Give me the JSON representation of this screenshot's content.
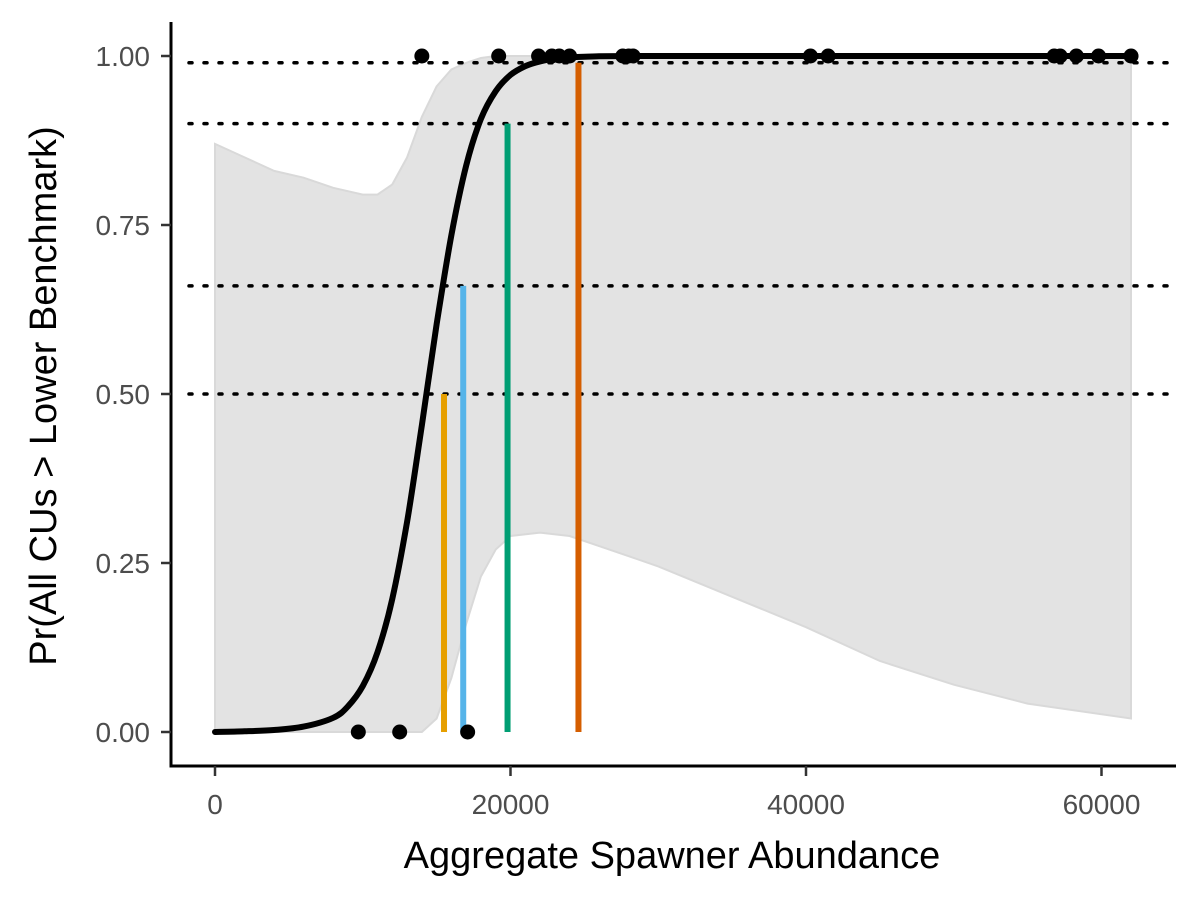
{
  "chart_data": {
    "type": "line",
    "title": "",
    "xlabel": "Aggregate Spawner Abundance",
    "ylabel": "Pr(All CUs > Lower Benchmark)",
    "xlim": [
      -2000,
      65000
    ],
    "ylim": [
      -0.1,
      1.05
    ],
    "x_ticks": [
      0,
      20000,
      40000,
      60000
    ],
    "x_tick_labels": [
      "0",
      "20000",
      "40000",
      "60000"
    ],
    "y_ticks": [
      0,
      0.25,
      0.5,
      0.75,
      1.0
    ],
    "y_tick_labels": [
      "0.00",
      "0.25",
      "0.50",
      "0.75",
      "1.00"
    ],
    "grid": false,
    "legend": "none",
    "fitted_curve": {
      "x": [
        0,
        2000,
        4000,
        6000,
        8000,
        9000,
        10000,
        11000,
        12000,
        13000,
        14000,
        15000,
        16000,
        17000,
        18000,
        19000,
        20000,
        21000,
        22000,
        23000,
        24000,
        25000,
        26000,
        28000,
        30000,
        35000,
        40000,
        50000,
        62000
      ],
      "y": [
        0.0,
        0.001,
        0.003,
        0.008,
        0.021,
        0.038,
        0.068,
        0.118,
        0.197,
        0.311,
        0.454,
        0.603,
        0.735,
        0.838,
        0.907,
        0.948,
        0.972,
        0.985,
        0.992,
        0.996,
        0.998,
        0.999,
        0.9995,
        1.0,
        1.0,
        1.0,
        1.0,
        1.0,
        1.0
      ],
      "color": "#000000"
    },
    "confidence_band": {
      "x": [
        0,
        2000,
        4000,
        6000,
        8000,
        10000,
        11000,
        12000,
        13000,
        14000,
        15000,
        16000,
        17000,
        18000,
        19000,
        20000,
        22000,
        24000,
        26000,
        28000,
        30000,
        35000,
        40000,
        45000,
        50000,
        55000,
        62000
      ],
      "lower": [
        0.0,
        0.0,
        0.0,
        0.0,
        0.0,
        0.0,
        0.0,
        0.0,
        0.0,
        0.0,
        0.02,
        0.08,
        0.16,
        0.23,
        0.27,
        0.29,
        0.295,
        0.29,
        0.275,
        0.26,
        0.245,
        0.2,
        0.155,
        0.105,
        0.07,
        0.042,
        0.02
      ],
      "upper": [
        0.87,
        0.85,
        0.83,
        0.82,
        0.805,
        0.795,
        0.795,
        0.81,
        0.85,
        0.91,
        0.955,
        0.98,
        0.99,
        0.997,
        1.0,
        1.0,
        1.0,
        1.0,
        1.0,
        1.0,
        1.0,
        1.0,
        1.0,
        1.0,
        1.0,
        1.0,
        1.0
      ],
      "color": "#d9d9d9"
    },
    "observations": [
      {
        "x": 14000,
        "y": 1
      },
      {
        "x": 19200,
        "y": 1
      },
      {
        "x": 21900,
        "y": 1
      },
      {
        "x": 22800,
        "y": 1
      },
      {
        "x": 23300,
        "y": 1
      },
      {
        "x": 24000,
        "y": 1
      },
      {
        "x": 27600,
        "y": 1
      },
      {
        "x": 28000,
        "y": 1
      },
      {
        "x": 28300,
        "y": 1
      },
      {
        "x": 40300,
        "y": 1
      },
      {
        "x": 41500,
        "y": 1
      },
      {
        "x": 56800,
        "y": 1
      },
      {
        "x": 57200,
        "y": 1
      },
      {
        "x": 58300,
        "y": 1
      },
      {
        "x": 59800,
        "y": 1
      },
      {
        "x": 62000,
        "y": 1
      },
      {
        "x": 9700,
        "y": 0
      },
      {
        "x": 12500,
        "y": 0
      },
      {
        "x": 17100,
        "y": 0
      }
    ],
    "probability_thresholds": [
      0.5,
      0.66,
      0.9,
      0.99
    ],
    "benchmark_lines": [
      {
        "x": 15500,
        "y": 0.5,
        "color": "#E69F00"
      },
      {
        "x": 16800,
        "y": 0.66,
        "color": "#56B4E9"
      },
      {
        "x": 19800,
        "y": 0.9,
        "color": "#009E73"
      },
      {
        "x": 24600,
        "y": 0.99,
        "color": "#D55E00"
      }
    ]
  }
}
